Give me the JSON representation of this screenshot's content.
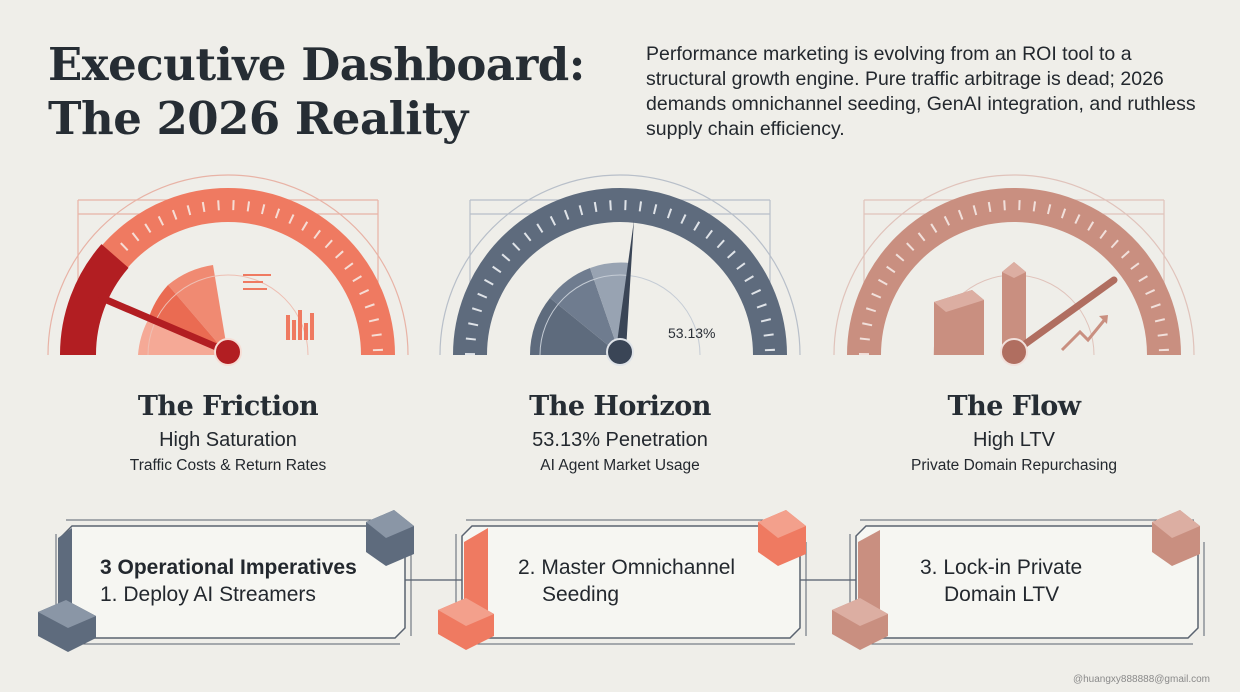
{
  "header": {
    "title_line1": "Executive Dashboard:",
    "title_line2": "The 2026 Reality",
    "intro": "Performance marketing is evolving from an ROI tool to a structural growth engine. Pure traffic arbitrage is dead; 2026 demands omnichannel seeding, GenAI integration, and ruthless supply chain efficiency."
  },
  "gauges": [
    {
      "title": "The Friction",
      "metric": "High Saturation",
      "subtitle": "Traffic Costs & Return Rates",
      "color": "#ef7a61"
    },
    {
      "title": "The Horizon",
      "metric": "53.13% Penetration",
      "subtitle": "AI Agent Market Usage",
      "dial_label": "53.13%",
      "color": "#5e6b7d"
    },
    {
      "title": "The Flow",
      "metric": "High LTV",
      "subtitle": "Private Domain Repurchasing",
      "color": "#c98f80"
    }
  ],
  "steps": {
    "heading": "3 Operational Imperatives",
    "items": [
      {
        "line1": "1. Deploy AI Streamers",
        "line2": ""
      },
      {
        "line1": "2. Master Omnichannel",
        "line2": "Seeding"
      },
      {
        "line1": "3. Lock-in Private",
        "line2": "Domain LTV"
      }
    ]
  },
  "watermark": "@huangxy888888@gmail.com",
  "colors": {
    "background": "#efeee9",
    "ink": "#262d34",
    "coral": "#ef7a61",
    "slate": "#5e6b7d",
    "rose": "#c98f80"
  }
}
